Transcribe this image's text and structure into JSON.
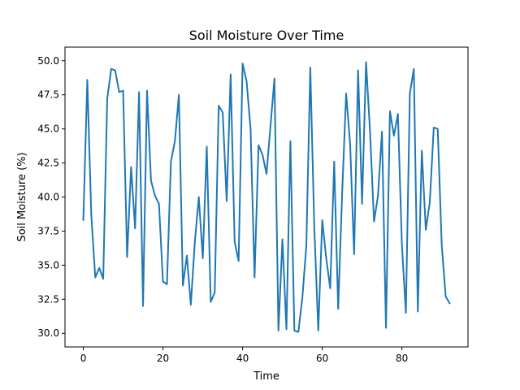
{
  "chart_data": {
    "type": "line",
    "title": "Soil Moisture Over Time",
    "xlabel": "Time",
    "ylabel": "Soil Moisture (%)",
    "xlim": [
      -4.6,
      96.6
    ],
    "ylim": [
      29.0,
      51.0
    ],
    "xticks": [
      0,
      20,
      40,
      60,
      80
    ],
    "xtick_labels": [
      "0",
      "20",
      "40",
      "60",
      "80"
    ],
    "yticks": [
      30.0,
      32.5,
      35.0,
      37.5,
      40.0,
      42.5,
      45.0,
      47.5,
      50.0
    ],
    "ytick_labels": [
      "30.0",
      "32.5",
      "35.0",
      "37.5",
      "40.0",
      "42.5",
      "45.0",
      "47.5",
      "50.0"
    ],
    "grid": false,
    "legend": "none",
    "series": [
      {
        "color": "#1f77b4",
        "x": [
          0,
          1,
          2,
          3,
          4,
          5,
          6,
          7,
          8,
          9,
          10,
          11,
          12,
          13,
          14,
          15,
          16,
          17,
          18,
          19,
          20,
          21,
          22,
          23,
          24,
          25,
          26,
          27,
          28,
          29,
          30,
          31,
          32,
          33,
          34,
          35,
          36,
          37,
          38,
          39,
          40,
          41,
          42,
          43,
          44,
          45,
          46,
          47,
          48,
          49,
          50,
          51,
          52,
          53,
          54,
          55,
          56,
          57,
          58,
          59,
          60,
          61,
          62,
          63,
          64,
          65,
          66,
          67,
          68,
          69,
          70,
          71,
          72,
          73,
          74,
          75,
          76,
          77,
          78,
          79,
          80,
          81,
          82,
          83,
          84,
          85,
          86,
          87,
          88,
          89,
          90,
          91,
          92
        ],
        "values": [
          38.3,
          48.6,
          38.7,
          34.1,
          34.8,
          34.0,
          47.2,
          49.4,
          49.3,
          47.7,
          47.8,
          35.6,
          42.2,
          37.7,
          47.7,
          32.0,
          47.8,
          41.2,
          40.1,
          39.5,
          33.8,
          33.6,
          42.6,
          44.1,
          47.5,
          33.5,
          35.7,
          32.1,
          36.7,
          40.0,
          35.5,
          43.7,
          32.3,
          33.0,
          46.7,
          46.2,
          39.7,
          49.0,
          36.7,
          35.3,
          49.8,
          48.5,
          45.0,
          34.1,
          43.8,
          43.1,
          41.7,
          45.2,
          48.7,
          30.2,
          36.9,
          30.3,
          44.1,
          30.2,
          30.1,
          32.6,
          36.4,
          49.5,
          37.8,
          30.2,
          38.3,
          35.5,
          33.3,
          42.6,
          31.8,
          40.3,
          47.6,
          43.9,
          35.8,
          49.3,
          39.5,
          49.9,
          44.8,
          38.2,
          40.1,
          44.8,
          30.4,
          46.3,
          44.5,
          46.1,
          36.5,
          31.5,
          47.6,
          49.4,
          31.6,
          43.4,
          37.6,
          39.6,
          45.1,
          45.0,
          36.5,
          32.7,
          32.2
        ]
      }
    ]
  }
}
